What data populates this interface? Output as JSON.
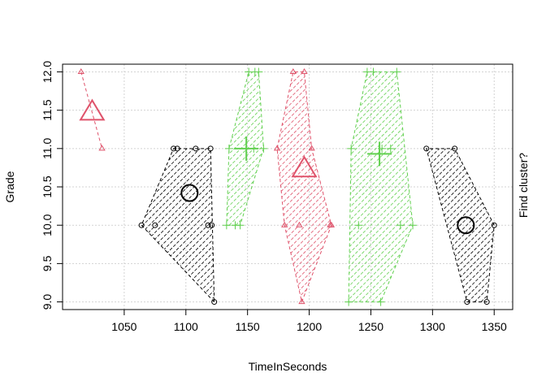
{
  "chart_data": {
    "type": "scatter",
    "xlabel": "TimeInSeconds",
    "ylabel": "Grade",
    "right_label": "Find cluster?",
    "xlim": [
      1000,
      1365
    ],
    "ylim": [
      8.9,
      12.1
    ],
    "xticks": [
      "1050",
      "1100",
      "1150",
      "1200",
      "1250",
      "1300",
      "1350"
    ],
    "yticks": [
      "9.0",
      "9.5",
      "10.0",
      "10.5",
      "11.0",
      "11.5",
      "12.0"
    ],
    "grid": true,
    "colors": {
      "black": "#000000",
      "red": "#DF536B",
      "green": "#61D04F",
      "grid": "#D3D3D3"
    },
    "clusters": [
      {
        "color": "black",
        "shape": "circle",
        "hatch": true,
        "points": [
          [
            1064,
            10
          ],
          [
            1075,
            10
          ],
          [
            1090,
            11
          ],
          [
            1093,
            11
          ],
          [
            1108,
            11
          ],
          [
            1118,
            10
          ],
          [
            1120,
            11
          ],
          [
            1121,
            10
          ],
          [
            1123,
            9
          ]
        ],
        "hull": [
          [
            1123,
            9
          ],
          [
            1064,
            10
          ],
          [
            1090,
            11
          ],
          [
            1120,
            11
          ]
        ],
        "center": [
          1103,
          10.42
        ]
      },
      {
        "color": "red",
        "shape": "triangle",
        "hatch": false,
        "points": [
          [
            1015,
            12
          ],
          [
            1032,
            11
          ]
        ],
        "hull": [
          [
            1015,
            12
          ],
          [
            1032,
            11
          ]
        ],
        "center": [
          1024,
          11.47
        ]
      },
      {
        "color": "green",
        "shape": "plus",
        "hatch": true,
        "points": [
          [
            1133,
            10
          ],
          [
            1140,
            10
          ],
          [
            1144,
            10
          ],
          [
            1135,
            11
          ],
          [
            1151,
            12
          ],
          [
            1156,
            12
          ],
          [
            1159,
            12
          ],
          [
            1155,
            11
          ],
          [
            1163,
            11
          ]
        ],
        "hull": [
          [
            1133,
            10
          ],
          [
            1144,
            10
          ],
          [
            1163,
            11
          ],
          [
            1159,
            12
          ],
          [
            1151,
            12
          ],
          [
            1135,
            11
          ]
        ],
        "center": [
          1149,
          11.0
        ]
      },
      {
        "color": "red",
        "shape": "triangle",
        "hatch": true,
        "points": [
          [
            1174,
            11
          ],
          [
            1180,
            10
          ],
          [
            1187,
            12
          ],
          [
            1192,
            10
          ],
          [
            1194,
            9
          ],
          [
            1196,
            12
          ],
          [
            1202,
            11
          ],
          [
            1217,
            10
          ],
          [
            1218,
            10
          ]
        ],
        "hull": [
          [
            1194,
            9
          ],
          [
            1218,
            10
          ],
          [
            1202,
            11
          ],
          [
            1196,
            12
          ],
          [
            1187,
            12
          ],
          [
            1174,
            11
          ],
          [
            1180,
            10
          ]
        ],
        "center": [
          1196,
          10.73
        ]
      },
      {
        "color": "green",
        "shape": "plus",
        "hatch": true,
        "points": [
          [
            1232,
            9
          ],
          [
            1258,
            9
          ],
          [
            1234,
            11
          ],
          [
            1240,
            10
          ],
          [
            1247,
            12
          ],
          [
            1252,
            12
          ],
          [
            1266,
            11
          ],
          [
            1271,
            12
          ],
          [
            1274,
            10
          ],
          [
            1284,
            10
          ],
          [
            1259,
            11
          ]
        ],
        "hull": [
          [
            1232,
            9
          ],
          [
            1258,
            9
          ],
          [
            1284,
            10
          ],
          [
            1271,
            12
          ],
          [
            1247,
            12
          ],
          [
            1234,
            11
          ]
        ],
        "center": [
          1257,
          10.93
        ]
      },
      {
        "color": "black",
        "shape": "circle",
        "hatch": true,
        "points": [
          [
            1295,
            11
          ],
          [
            1318,
            11
          ],
          [
            1328,
            9
          ],
          [
            1344,
            9
          ],
          [
            1350,
            10
          ]
        ],
        "hull": [
          [
            1328,
            9
          ],
          [
            1344,
            9
          ],
          [
            1350,
            10
          ],
          [
            1318,
            11
          ],
          [
            1295,
            11
          ]
        ],
        "center": [
          1327,
          10.0
        ]
      }
    ]
  }
}
